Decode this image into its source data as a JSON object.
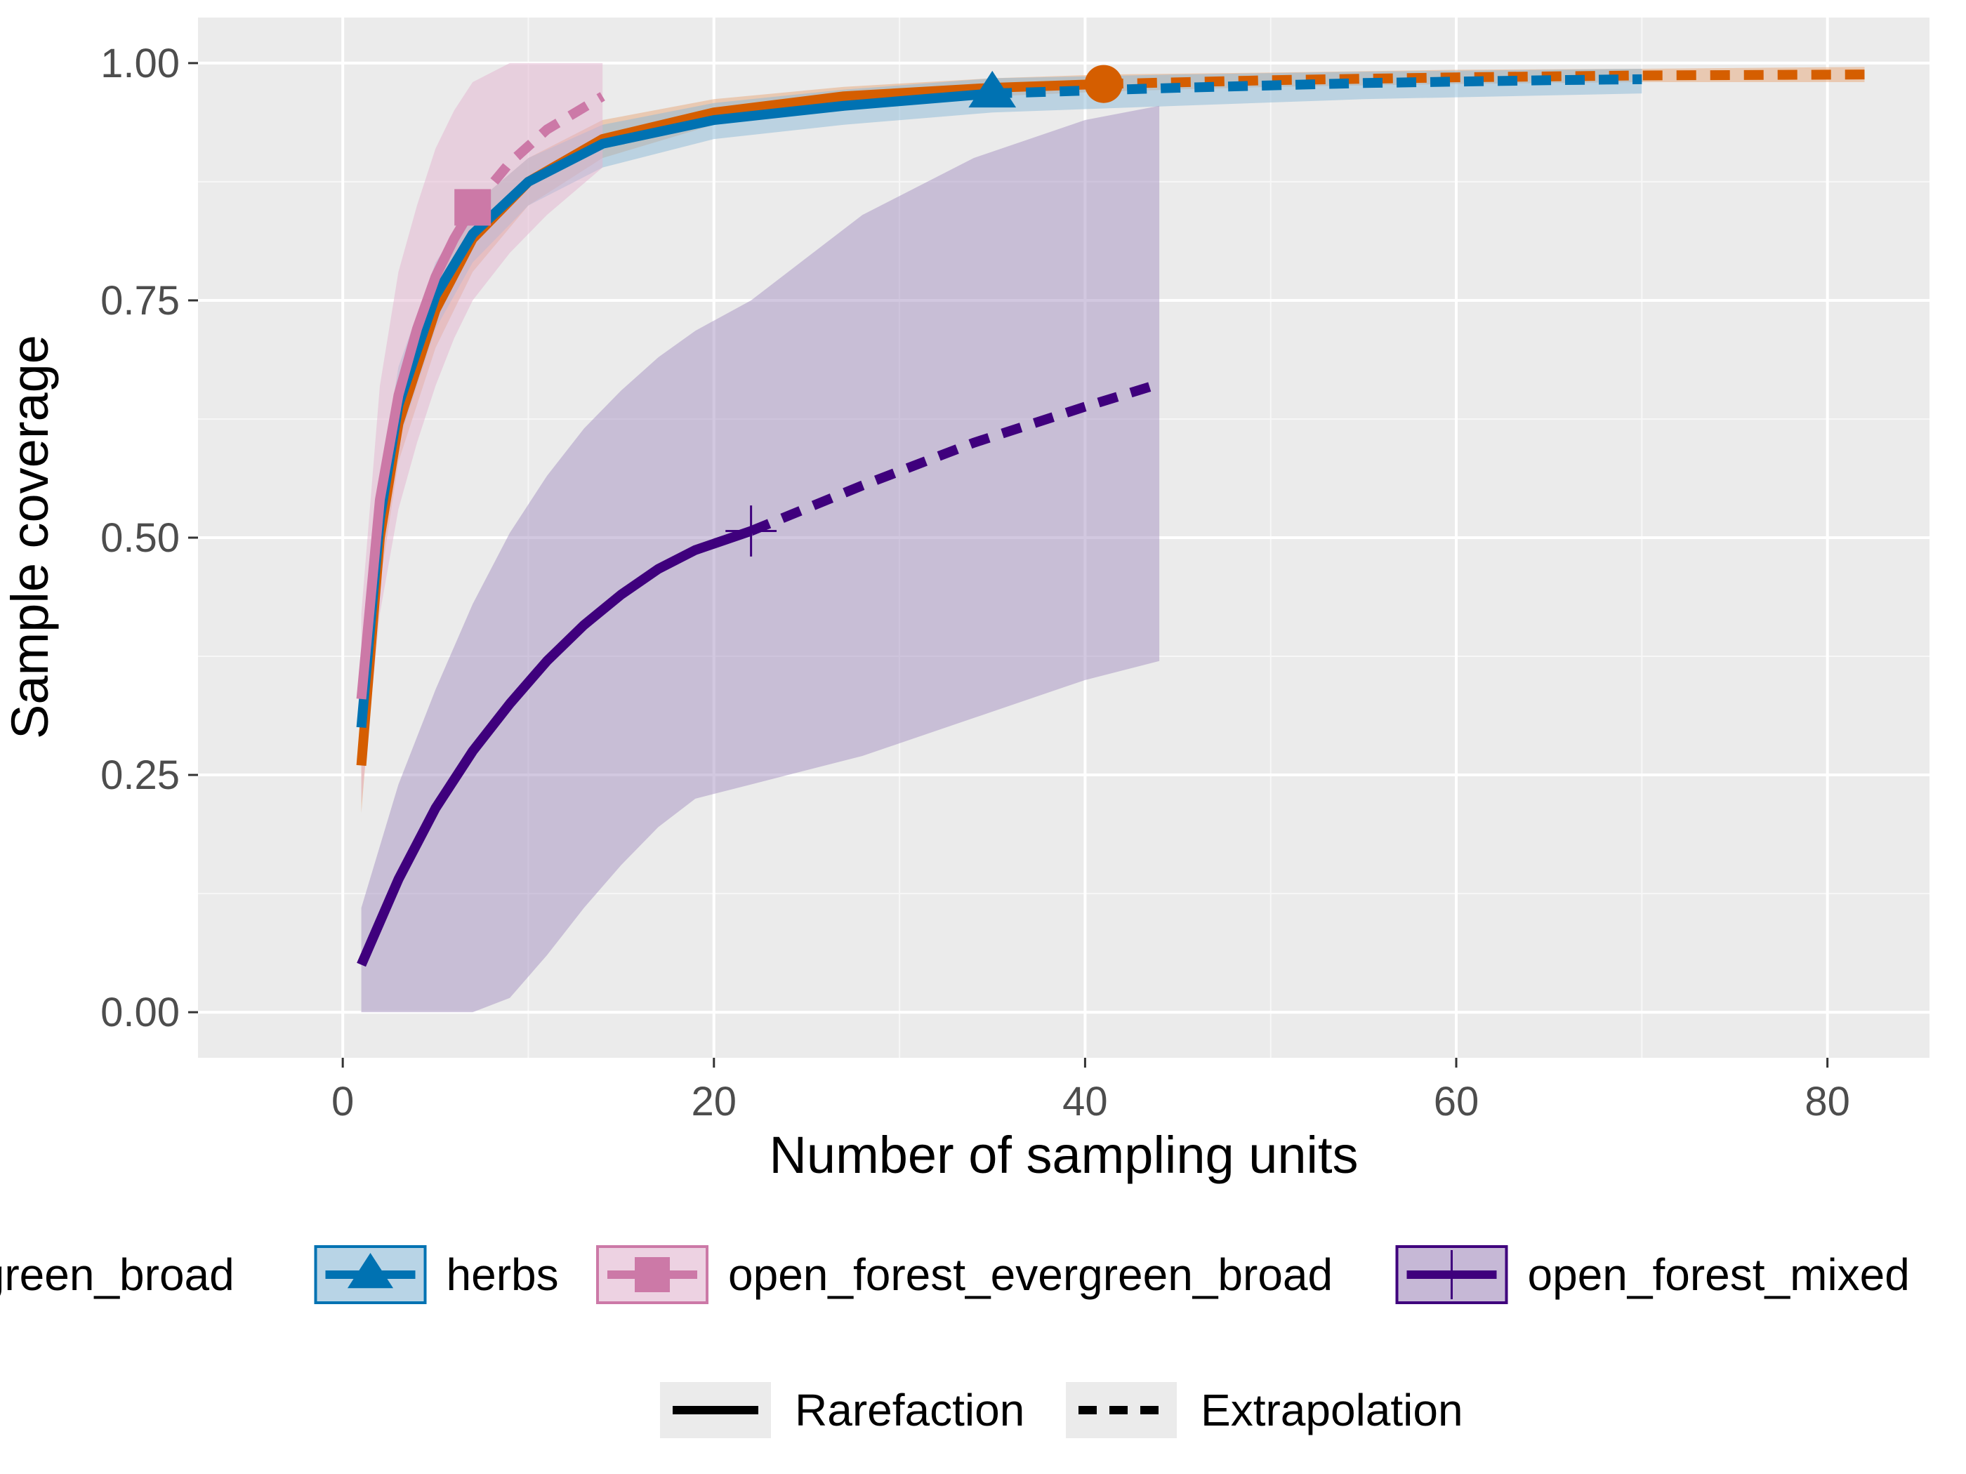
{
  "chart_data": {
    "type": "line",
    "title": "",
    "xlabel": "Number of sampling units",
    "ylabel": "Sample coverage",
    "xlim": [
      -7.8,
      85.5
    ],
    "ylim": [
      -0.048,
      1.048
    ],
    "x_ticks": [
      0,
      20,
      40,
      60,
      80
    ],
    "x_tick_labels": [
      "0",
      "20",
      "40",
      "60",
      "80"
    ],
    "y_ticks": [
      0,
      0.25,
      0.5,
      0.75,
      1.0
    ],
    "y_tick_labels": [
      "0.00",
      "0.25",
      "0.50",
      "0.75",
      "1.00"
    ],
    "grid": true,
    "legend_position": "bottom",
    "series": [
      {
        "name": "closed_forest_evergreen_broad",
        "color": "#D55E00",
        "marker": "circle",
        "observed": {
          "x": 41,
          "y": 0.978
        },
        "rarefaction": {
          "x": [
            1,
            2,
            3,
            5,
            7,
            10,
            14,
            20,
            27,
            35,
            41
          ],
          "y": [
            0.26,
            0.5,
            0.62,
            0.74,
            0.815,
            0.875,
            0.92,
            0.948,
            0.965,
            0.974,
            0.978
          ]
        },
        "extrapolation": {
          "x": [
            41,
            50,
            60,
            70,
            82
          ],
          "y": [
            0.978,
            0.982,
            0.985,
            0.987,
            0.988
          ]
        },
        "ci_lower": [
          0.21,
          0.45,
          0.58,
          0.7,
          0.78,
          0.85,
          0.9,
          0.935,
          0.955,
          0.965,
          0.97,
          0.975,
          0.978,
          0.98,
          0.98
        ],
        "ci_upper": [
          0.3,
          0.55,
          0.66,
          0.78,
          0.85,
          0.9,
          0.94,
          0.962,
          0.975,
          0.984,
          0.988,
          0.99,
          0.993,
          0.994,
          0.996
        ]
      },
      {
        "name": "herbs",
        "color": "#0072B2",
        "marker": "triangle",
        "observed": {
          "x": 35,
          "y": 0.968
        },
        "rarefaction": {
          "x": [
            1,
            2,
            3,
            5,
            7,
            10,
            14,
            20,
            27,
            35
          ],
          "y": [
            0.3,
            0.52,
            0.64,
            0.755,
            0.82,
            0.875,
            0.915,
            0.94,
            0.955,
            0.968
          ]
        },
        "extrapolation": {
          "x": [
            35,
            45,
            55,
            65,
            70
          ],
          "y": [
            0.968,
            0.974,
            0.979,
            0.982,
            0.983
          ]
        },
        "ci_lower": [
          0.27,
          0.48,
          0.6,
          0.72,
          0.79,
          0.85,
          0.89,
          0.92,
          0.935,
          0.948,
          0.955,
          0.962,
          0.966,
          0.968
        ],
        "ci_upper": [
          0.33,
          0.56,
          0.68,
          0.79,
          0.85,
          0.9,
          0.935,
          0.958,
          0.972,
          0.984,
          0.988,
          0.991,
          0.993,
          0.994
        ]
      },
      {
        "name": "open_forest_evergreen_broad",
        "color": "#CC79A7",
        "marker": "square",
        "observed": {
          "x": 7,
          "y": 0.848
        },
        "rarefaction": {
          "x": [
            1,
            2,
            3,
            4,
            5,
            6,
            7
          ],
          "y": [
            0.33,
            0.54,
            0.65,
            0.72,
            0.775,
            0.815,
            0.848
          ]
        },
        "extrapolation": {
          "x": [
            7,
            9,
            11,
            14
          ],
          "y": [
            0.848,
            0.895,
            0.93,
            0.965
          ]
        },
        "ci_lower": [
          0.22,
          0.42,
          0.53,
          0.6,
          0.66,
          0.71,
          0.75,
          0.8,
          0.84,
          0.89
        ],
        "ci_upper": [
          0.42,
          0.66,
          0.78,
          0.85,
          0.91,
          0.95,
          0.98,
          1.0,
          1.0,
          1.0
        ]
      },
      {
        "name": "open_forest_mixed",
        "color": "#3F007D",
        "marker": "cross",
        "observed": {
          "x": 22,
          "y": 0.507
        },
        "rarefaction": {
          "x": [
            1,
            3,
            5,
            7,
            9,
            11,
            13,
            15,
            17,
            19,
            22
          ],
          "y": [
            0.05,
            0.14,
            0.215,
            0.275,
            0.325,
            0.37,
            0.408,
            0.44,
            0.467,
            0.487,
            0.507
          ]
        },
        "extrapolation": {
          "x": [
            22,
            28,
            34,
            40,
            44
          ],
          "y": [
            0.507,
            0.555,
            0.6,
            0.638,
            0.662
          ]
        },
        "ci_lower": [
          0.0,
          0.0,
          0.0,
          0.0,
          0.015,
          0.06,
          0.11,
          0.155,
          0.195,
          0.225,
          0.24,
          0.27,
          0.31,
          0.35,
          0.37
        ],
        "ci_upper": [
          0.11,
          0.24,
          0.34,
          0.43,
          0.505,
          0.565,
          0.615,
          0.655,
          0.69,
          0.718,
          0.75,
          0.84,
          0.9,
          0.94,
          0.955
        ]
      }
    ],
    "linetype_legend": [
      "Rarefaction",
      "Extrapolation"
    ]
  },
  "legend": {
    "items": [
      {
        "label": "closed_forest_evergreen_broad",
        "color": "#D55E00",
        "fill": "#F2C6A8",
        "marker": "circle"
      },
      {
        "label": "herbs",
        "color": "#0072B2",
        "fill": "#B8D4E6",
        "marker": "triangle"
      },
      {
        "label": "open_forest_evergreen_broad",
        "color": "#CC79A7",
        "fill": "#EDD2E2",
        "marker": "square"
      },
      {
        "label": "open_forest_mixed",
        "color": "#3F007D",
        "fill": "#C6B8D6",
        "marker": "cross"
      }
    ],
    "linetypes": [
      {
        "label": "Rarefaction",
        "style": "solid"
      },
      {
        "label": "Extrapolation",
        "style": "dashed"
      }
    ]
  }
}
